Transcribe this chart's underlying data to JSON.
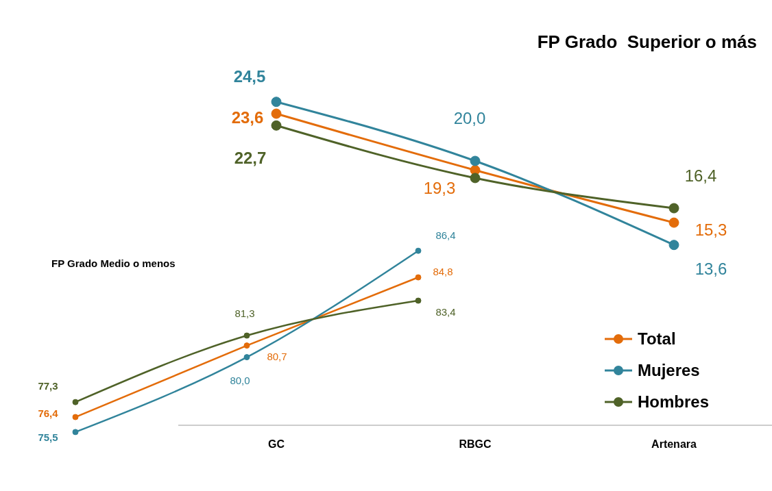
{
  "chart_data": [
    {
      "type": "line",
      "title": "FP Grado  Superior o más",
      "categories": [
        "GC",
        "RBGC",
        "Artenara"
      ],
      "legend": "right",
      "marker": "circle",
      "series": [
        {
          "name": "Total",
          "color": "#e36c0a",
          "values": [
            23.6,
            19.3,
            15.3
          ],
          "value_labels": [
            "23,6",
            "19,3",
            "15,3"
          ]
        },
        {
          "name": "Mujeres",
          "color": "#31849b",
          "values": [
            24.5,
            20.0,
            13.6
          ],
          "value_labels": [
            "24,5",
            "20,0",
            "13,6"
          ]
        },
        {
          "name": "Hombres",
          "color": "#4f6228",
          "values": [
            22.7,
            18.7,
            16.4
          ],
          "value_labels": [
            "22,7",
            null,
            "16,4"
          ]
        }
      ]
    },
    {
      "type": "line",
      "title": "FP Grado Medio o menos",
      "categories": [
        null,
        null,
        null
      ],
      "marker": "circle",
      "series": [
        {
          "color": "#e36c0a",
          "values": [
            76.4,
            80.7,
            84.8
          ],
          "value_labels": [
            "76,4",
            "80,7",
            "84,8"
          ]
        },
        {
          "color": "#31849b",
          "values": [
            75.5,
            80.0,
            86.4
          ],
          "value_labels": [
            "75,5",
            "80,0",
            "86,4"
          ]
        },
        {
          "color": "#4f6228",
          "values": [
            77.3,
            81.3,
            83.4
          ],
          "value_labels": [
            "77,3",
            "81,3",
            "83,4"
          ]
        }
      ]
    }
  ]
}
